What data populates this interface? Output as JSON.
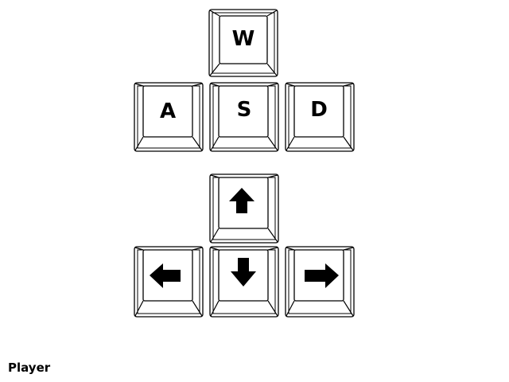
{
  "keys": {
    "w": "W",
    "a": "A",
    "s": "S",
    "d": "D"
  },
  "arrow_keys": [
    "up",
    "left",
    "down",
    "right"
  ],
  "player_label": "Player"
}
